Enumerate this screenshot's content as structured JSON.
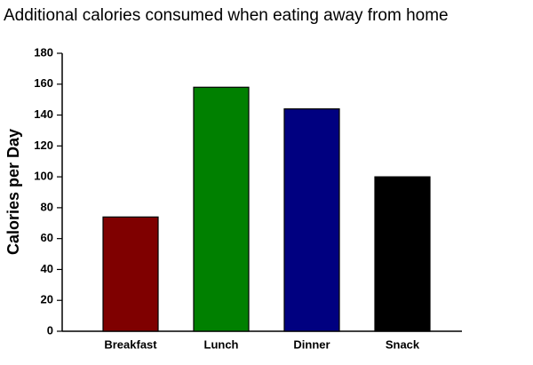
{
  "chart_data": {
    "type": "bar",
    "title": "Additional calories consumed when eating away from home",
    "y_label": "Calories per Day",
    "categories": [
      "Breakfast",
      "Lunch",
      "Dinner",
      "Snack"
    ],
    "values": [
      74,
      158,
      144,
      100
    ],
    "colors": [
      "#7f0000",
      "#008000",
      "#000080",
      "#000000"
    ],
    "ylim": [
      0,
      180
    ],
    "yticks": [
      0,
      20,
      40,
      60,
      80,
      100,
      120,
      140,
      160,
      180
    ],
    "grid": false
  }
}
